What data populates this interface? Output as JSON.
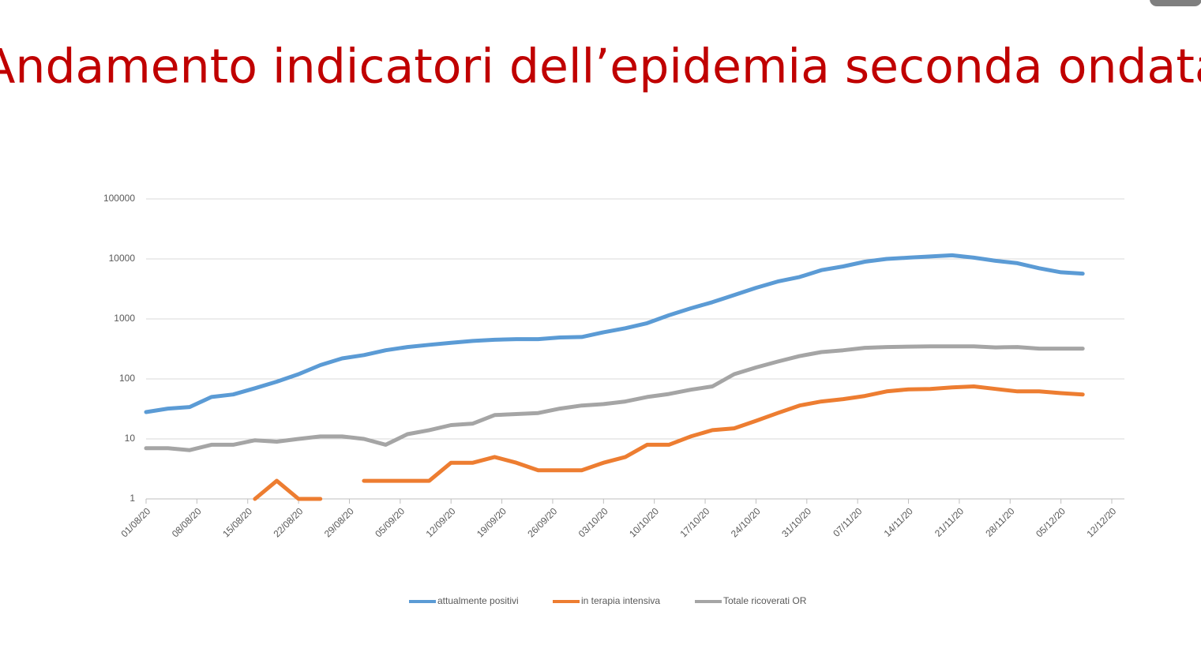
{
  "chart_data": {
    "type": "line",
    "title": "Andamento indicatori dell’epidemia seconda ondata",
    "log_scale": true,
    "grid": true,
    "legend": "bottom",
    "x": [
      "01/08/20",
      "04/08/20",
      "07/08/20",
      "10/08/20",
      "13/08/20",
      "16/08/20",
      "19/08/20",
      "22/08/20",
      "25/08/20",
      "28/08/20",
      "31/08/20",
      "03/09/20",
      "06/09/20",
      "09/09/20",
      "12/09/20",
      "15/09/20",
      "18/09/20",
      "21/09/20",
      "24/09/20",
      "27/09/20",
      "30/09/20",
      "03/10/20",
      "06/10/20",
      "09/10/20",
      "12/10/20",
      "15/10/20",
      "18/10/20",
      "21/10/20",
      "24/10/20",
      "27/10/20",
      "30/10/20",
      "02/11/20",
      "05/11/20",
      "08/11/20",
      "11/11/20",
      "14/11/20",
      "17/11/20",
      "20/11/20",
      "23/11/20",
      "26/11/20",
      "29/11/20",
      "02/12/20",
      "05/12/20",
      "08/12/20"
    ],
    "series": [
      {
        "name": "attualmente positivi",
        "color": "#5b9bd5",
        "values": [
          28,
          32,
          34,
          50,
          55,
          70,
          90,
          120,
          170,
          220,
          250,
          300,
          340,
          370,
          400,
          430,
          450,
          460,
          460,
          490,
          500,
          600,
          700,
          850,
          1150,
          1500,
          1900,
          2500,
          3300,
          4200,
          5000,
          6500,
          7500,
          9000,
          10000,
          10500,
          11000,
          11500,
          10500,
          9300,
          8500,
          7000,
          6000,
          5700
        ]
      },
      {
        "name": "in terapia intensiva",
        "color": "#ed7d31",
        "values": [
          null,
          null,
          null,
          null,
          null,
          1,
          2,
          1,
          1,
          null,
          2,
          2,
          2,
          2,
          4,
          4,
          5,
          4,
          3,
          3,
          3,
          4,
          5,
          8,
          8,
          11,
          14,
          15,
          20,
          27,
          36,
          42,
          46,
          52,
          62,
          67,
          68,
          72,
          75,
          68,
          62,
          62,
          58,
          55
        ]
      },
      {
        "name": "Totale ricoverati OR",
        "color": "#a5a5a5",
        "values": [
          7,
          7,
          6.5,
          8,
          8,
          9.5,
          9,
          10,
          11,
          11,
          10,
          8,
          12,
          14,
          17,
          18,
          25,
          26,
          27,
          32,
          36,
          38,
          42,
          50,
          56,
          66,
          75,
          120,
          155,
          195,
          240,
          280,
          300,
          330,
          340,
          345,
          350,
          350,
          350,
          335,
          340,
          320,
          320,
          320
        ]
      }
    ],
    "xlim": [
      "01/08/20",
      "12/12/20"
    ],
    "xticks": [
      "01/08/20",
      "08/08/20",
      "15/08/20",
      "22/08/20",
      "29/08/20",
      "05/09/20",
      "12/09/20",
      "19/09/20",
      "26/09/20",
      "03/10/20",
      "10/10/20",
      "17/10/20",
      "24/10/20",
      "31/10/20",
      "07/11/20",
      "14/11/20",
      "21/11/20",
      "28/11/20",
      "05/12/20",
      "12/12/20"
    ],
    "ylim": [
      1,
      100000
    ],
    "yticks": [
      1,
      10,
      100,
      1000,
      10000,
      100000
    ]
  }
}
